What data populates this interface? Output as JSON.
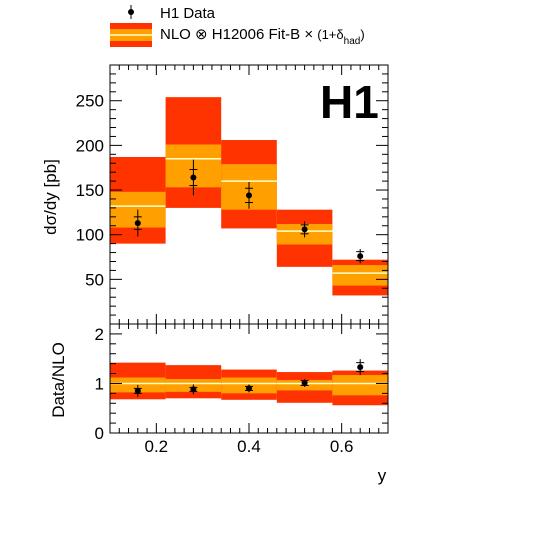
{
  "legend": {
    "data_label": "H1 Data",
    "nlo_prefix": "NLO",
    "otimes": "⊗",
    "nlo_pdf": "H12006 Fit-B",
    "times": "×",
    "corr_open": "(1+δ",
    "corr_sub": "had",
    "corr_close": ")"
  },
  "colors": {
    "outer_band": "#ff3300",
    "inner_band": "#ffa000",
    "central_line": "#ffffcc",
    "marker": "#000000"
  },
  "chart_data": [
    {
      "type": "bar",
      "title": "",
      "experiment_label": "H1",
      "xlabel": "y",
      "ylabel": "dσ/dy [pb]",
      "xlim": [
        0.1,
        0.7
      ],
      "ylim": [
        0,
        290
      ],
      "ytick_labels": [
        "50",
        "100",
        "150",
        "200",
        "250"
      ],
      "bins": [
        [
          0.1,
          0.22
        ],
        [
          0.22,
          0.34
        ],
        [
          0.34,
          0.46
        ],
        [
          0.46,
          0.58
        ],
        [
          0.58,
          0.7
        ]
      ],
      "series": [
        {
          "name": "H1 Data",
          "x": [
            0.16,
            0.28,
            0.4,
            0.52,
            0.64
          ],
          "y": [
            113,
            164,
            144,
            106,
            76
          ],
          "err_stat": [
            7,
            9,
            8,
            5,
            5
          ],
          "err_tot": [
            15,
            20,
            15,
            9,
            8
          ]
        },
        {
          "name": "NLO ⊗ H12006 Fit-B × (1+δhad)",
          "central": [
            132,
            185,
            160,
            104,
            57
          ],
          "inner_low": [
            108,
            153,
            128,
            89,
            43
          ],
          "inner_high": [
            148,
            201,
            179,
            112,
            66
          ],
          "outer_low": [
            90,
            130,
            107,
            64,
            32
          ],
          "outer_high": [
            187,
            254,
            206,
            128,
            72
          ]
        }
      ]
    },
    {
      "type": "bar",
      "xlabel": "y",
      "ylabel": "Data/NLO",
      "xlim": [
        0.1,
        0.7
      ],
      "ylim": [
        0,
        2.2
      ],
      "xtick_labels": [
        "0.2",
        "0.4",
        "0.6"
      ],
      "ytick_labels": [
        "0",
        "1",
        "2"
      ],
      "bins": [
        [
          0.1,
          0.22
        ],
        [
          0.22,
          0.34
        ],
        [
          0.34,
          0.46
        ],
        [
          0.46,
          0.58
        ],
        [
          0.58,
          0.7
        ]
      ],
      "series": [
        {
          "name": "H1 Data",
          "x": [
            0.16,
            0.28,
            0.4,
            0.52,
            0.64
          ],
          "y": [
            0.85,
            0.88,
            0.9,
            1.01,
            1.33
          ],
          "err_stat": [
            0.05,
            0.04,
            0.04,
            0.05,
            0.09
          ],
          "err_tot": [
            0.12,
            0.1,
            0.08,
            0.08,
            0.16
          ]
        },
        {
          "name": "NLO",
          "central": [
            1,
            1,
            1,
            1,
            1
          ],
          "inner_low": [
            0.82,
            0.83,
            0.8,
            0.86,
            0.76
          ],
          "inner_high": [
            1.12,
            1.09,
            1.12,
            1.07,
            1.17
          ],
          "outer_low": [
            0.68,
            0.7,
            0.67,
            0.61,
            0.56
          ],
          "outer_high": [
            1.42,
            1.37,
            1.28,
            1.23,
            1.26
          ]
        }
      ]
    }
  ]
}
